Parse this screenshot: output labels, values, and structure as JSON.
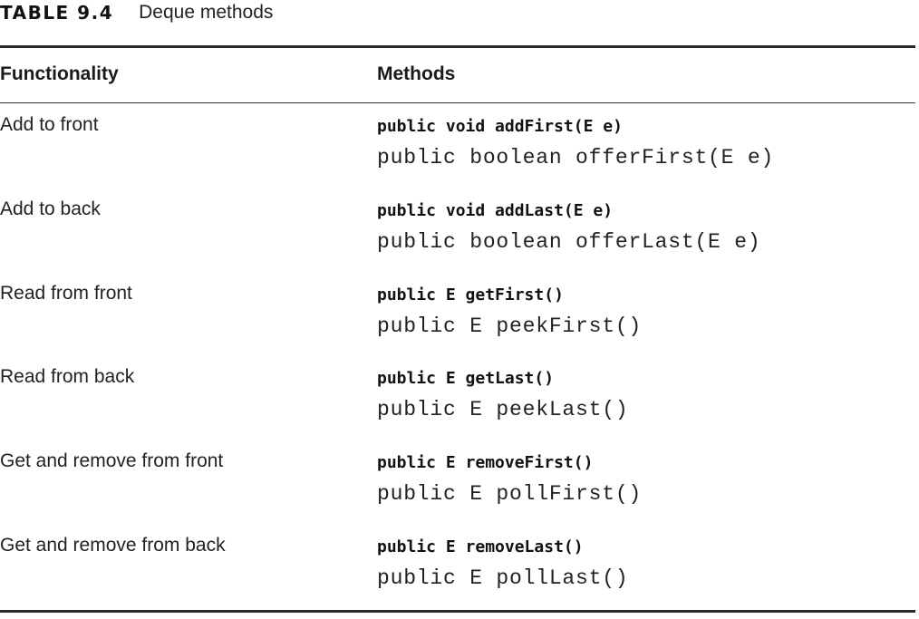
{
  "table": {
    "label": "TABLE 9.4",
    "title": "Deque methods",
    "headers": {
      "functionality": "Functionality",
      "methods": "Methods"
    },
    "rows": [
      {
        "functionality": "Add to front",
        "primary": "public void addFirst(E e)",
        "alternate": "public boolean offerFirst(E e)"
      },
      {
        "functionality": "Add to back",
        "primary": "public void addLast(E e)",
        "alternate": "public boolean offerLast(E e)"
      },
      {
        "functionality": "Read from front",
        "primary": "public E getFirst()",
        "alternate": "public E peekFirst()"
      },
      {
        "functionality": "Read from back",
        "primary": "public E getLast()",
        "alternate": "public E peekLast()"
      },
      {
        "functionality": "Get and remove from front",
        "primary": "public E removeFirst()",
        "alternate": "public E pollFirst()"
      },
      {
        "functionality": "Get and remove from back",
        "primary": "public E removeLast()",
        "alternate": "public E pollLast()"
      }
    ]
  }
}
